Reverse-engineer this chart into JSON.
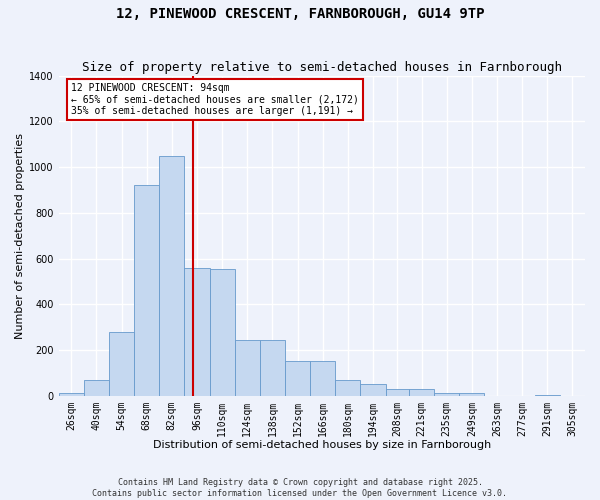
{
  "title": "12, PINEWOOD CRESCENT, FARNBOROUGH, GU14 9TP",
  "subtitle": "Size of property relative to semi-detached houses in Farnborough",
  "xlabel": "Distribution of semi-detached houses by size in Farnborough",
  "ylabel": "Number of semi-detached properties",
  "footer_line1": "Contains HM Land Registry data © Crown copyright and database right 2025.",
  "footer_line2": "Contains public sector information licensed under the Open Government Licence v3.0.",
  "annotation_line1": "12 PINEWOOD CRESCENT: 94sqm",
  "annotation_line2": "← 65% of semi-detached houses are smaller (2,172)",
  "annotation_line3": "35% of semi-detached houses are larger (1,191) →",
  "property_size": 94,
  "bar_labels": [
    "26sqm",
    "40sqm",
    "54sqm",
    "68sqm",
    "82sqm",
    "96sqm",
    "110sqm",
    "124sqm",
    "138sqm",
    "152sqm",
    "166sqm",
    "180sqm",
    "194sqm",
    "208sqm",
    "221sqm",
    "235sqm",
    "249sqm",
    "263sqm",
    "277sqm",
    "291sqm",
    "305sqm"
  ],
  "bar_edges": [
    19,
    33,
    47,
    61,
    75,
    89,
    103,
    117,
    131,
    145,
    159,
    173,
    187,
    201,
    214,
    228,
    242,
    256,
    270,
    284,
    298,
    312
  ],
  "bar_values": [
    10,
    70,
    280,
    920,
    1050,
    560,
    555,
    245,
    245,
    150,
    150,
    70,
    50,
    30,
    30,
    10,
    10,
    0,
    0,
    5,
    0
  ],
  "bar_color": "#c5d8f0",
  "bar_edge_color": "#6699cc",
  "vline_x": 94,
  "vline_color": "#cc0000",
  "annotation_box_color": "#cc0000",
  "background_color": "#eef2fb",
  "ylim": [
    0,
    1400
  ],
  "yticks": [
    0,
    200,
    400,
    600,
    800,
    1000,
    1200,
    1400
  ],
  "grid_color": "#ffffff",
  "title_fontsize": 10,
  "subtitle_fontsize": 9,
  "axis_label_fontsize": 8,
  "tick_fontsize": 7,
  "annotation_fontsize": 7,
  "footer_fontsize": 6
}
